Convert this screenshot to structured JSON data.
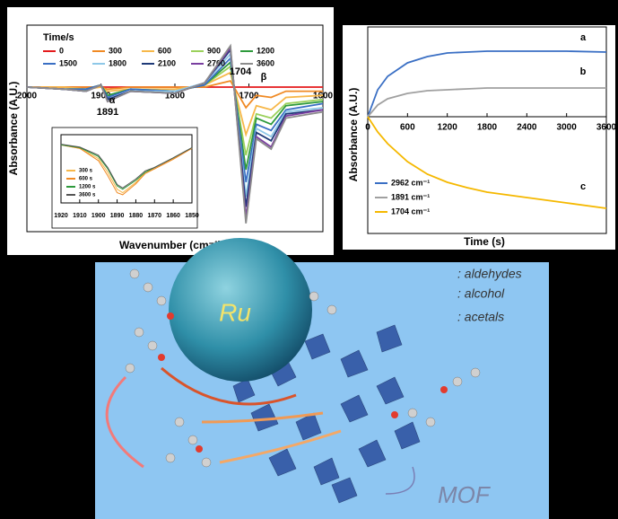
{
  "chart_data": [
    {
      "type": "line",
      "x_label": "Wavenumber (cm⁻¹)",
      "y_label": "Absorbance (A.U.)",
      "legend_title": "Time/s",
      "x": [
        2000,
        1950,
        1920,
        1900,
        1891,
        1860,
        1800,
        1760,
        1725,
        1704,
        1690,
        1670,
        1650,
        1600
      ],
      "xlim": [
        2000,
        1600
      ],
      "xticks": [
        2000,
        1900,
        1800,
        1700,
        1600
      ],
      "ylim": [
        -0.7,
        0.3
      ],
      "annotations": [
        "1704",
        "β",
        "α",
        "1891"
      ],
      "series": [
        {
          "name": "0",
          "color": "#e41a1c",
          "values": [
            0,
            0,
            0,
            0,
            0,
            0,
            0,
            0,
            0,
            0,
            0,
            0,
            0,
            0
          ]
        },
        {
          "name": "300",
          "color": "#f08a24",
          "values": [
            0,
            0,
            0,
            0,
            -0.01,
            0,
            0,
            0,
            0.03,
            -0.1,
            -0.04,
            -0.05,
            -0.02,
            -0.02
          ]
        },
        {
          "name": "600",
          "color": "#f7b84a",
          "values": [
            0,
            0,
            -0.01,
            0,
            -0.02,
            -0.01,
            -0.01,
            0.01,
            0.07,
            -0.23,
            -0.09,
            -0.11,
            -0.05,
            -0.04
          ]
        },
        {
          "name": "900",
          "color": "#9bd15b",
          "values": [
            0,
            -0.01,
            -0.01,
            0.01,
            -0.04,
            -0.01,
            -0.02,
            0.01,
            0.1,
            -0.33,
            -0.13,
            -0.15,
            -0.08,
            -0.06
          ]
        },
        {
          "name": "1200",
          "color": "#2e9a3c",
          "values": [
            0,
            -0.01,
            -0.01,
            0.01,
            -0.04,
            -0.01,
            -0.02,
            0.01,
            0.12,
            -0.4,
            -0.15,
            -0.18,
            -0.09,
            -0.07
          ]
        },
        {
          "name": "1500",
          "color": "#3a6fc4",
          "values": [
            0,
            -0.01,
            -0.01,
            0.01,
            -0.05,
            -0.01,
            -0.02,
            0.01,
            0.14,
            -0.46,
            -0.18,
            -0.21,
            -0.11,
            -0.08
          ]
        },
        {
          "name": "1800",
          "color": "#8ec8e8",
          "values": [
            0,
            -0.01,
            -0.02,
            0.01,
            -0.06,
            -0.02,
            -0.02,
            0.02,
            0.16,
            -0.53,
            -0.2,
            -0.24,
            -0.12,
            -0.1
          ]
        },
        {
          "name": "2100",
          "color": "#1f3a78",
          "values": [
            0,
            -0.01,
            -0.02,
            0.01,
            -0.06,
            -0.02,
            -0.03,
            0.02,
            0.18,
            -0.58,
            -0.22,
            -0.26,
            -0.13,
            -0.11
          ]
        },
        {
          "name": "2700",
          "color": "#7a3fa0",
          "values": [
            0,
            -0.01,
            -0.02,
            0.01,
            -0.07,
            -0.02,
            -0.03,
            0.02,
            0.19,
            -0.63,
            -0.24,
            -0.29,
            -0.14,
            -0.11
          ]
        },
        {
          "name": "3600",
          "color": "#8c8c8c",
          "values": [
            0,
            -0.01,
            -0.02,
            0.01,
            -0.07,
            -0.02,
            -0.03,
            0.02,
            0.2,
            -0.66,
            -0.25,
            -0.3,
            -0.15,
            -0.12
          ]
        }
      ]
    },
    {
      "type": "line",
      "x": [
        1920,
        1910,
        1900,
        1895,
        1890,
        1887,
        1880,
        1875,
        1870,
        1860,
        1850
      ],
      "xlim": [
        1920,
        1850
      ],
      "xticks": [
        1920,
        1910,
        1900,
        1890,
        1880,
        1870,
        1860,
        1850
      ],
      "ylim": [
        0,
        1
      ],
      "series": [
        {
          "name": "300 s",
          "color": "#f7b84a",
          "values": [
            0.85,
            0.8,
            0.65,
            0.45,
            0.2,
            0.15,
            0.3,
            0.45,
            0.5,
            0.65,
            0.8
          ]
        },
        {
          "name": "600 s",
          "color": "#f08a24",
          "values": [
            0.85,
            0.8,
            0.62,
            0.4,
            0.15,
            0.12,
            0.28,
            0.43,
            0.5,
            0.64,
            0.8
          ]
        },
        {
          "name": "1200 s",
          "color": "#2e9a3c",
          "values": [
            0.85,
            0.81,
            0.68,
            0.5,
            0.25,
            0.2,
            0.33,
            0.45,
            0.52,
            0.66,
            0.81
          ]
        },
        {
          "name": "3600 s",
          "color": "#555555",
          "values": [
            0.86,
            0.82,
            0.7,
            0.52,
            0.27,
            0.22,
            0.35,
            0.47,
            0.52,
            0.66,
            0.81
          ]
        }
      ]
    },
    {
      "type": "line",
      "x_label": "Time (s)",
      "y_label": "Absorbance (A.U.)",
      "x": [
        0,
        150,
        300,
        600,
        900,
        1200,
        1500,
        1800,
        2400,
        3000,
        3600
      ],
      "xlim": [
        0,
        3600
      ],
      "xticks": [
        0,
        600,
        1200,
        1800,
        2400,
        3000,
        3600
      ],
      "ylim": [
        -1.3,
        1.0
      ],
      "annotations": [
        "a",
        "b",
        "c"
      ],
      "series": [
        {
          "name": "2962 cm⁻¹",
          "color": "#3a6fc4",
          "values": [
            0,
            0.3,
            0.45,
            0.6,
            0.67,
            0.71,
            0.72,
            0.73,
            0.73,
            0.73,
            0.72
          ]
        },
        {
          "name": "1891 cm⁻¹",
          "color": "#a0a0a0",
          "values": [
            0,
            0.13,
            0.2,
            0.26,
            0.29,
            0.3,
            0.31,
            0.32,
            0.32,
            0.32,
            0.32
          ]
        },
        {
          "name": "1704 cm⁻¹",
          "color": "#f5b800",
          "values": [
            0,
            -0.17,
            -0.3,
            -0.5,
            -0.64,
            -0.73,
            -0.79,
            -0.84,
            -0.9,
            -0.96,
            -1.02
          ]
        }
      ]
    }
  ],
  "illustration": {
    "labels": [
      "Ru",
      ": aldehydes",
      ": alcohol",
      ": acetals",
      "MOF"
    ]
  }
}
